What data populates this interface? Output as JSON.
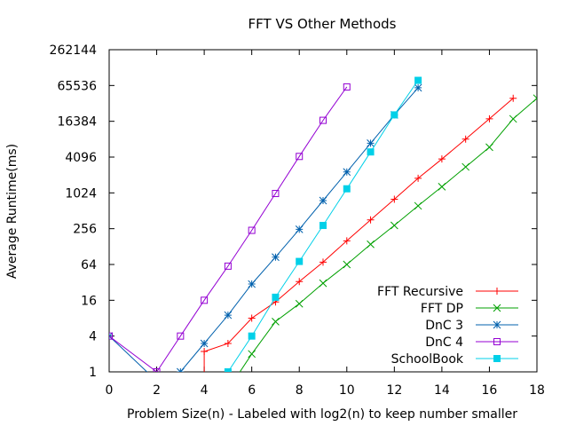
{
  "chart_data": {
    "type": "line",
    "title": "FFT VS Other Methods",
    "xlabel": "Problem Size(n) - Labeled with log2(n) to keep number smaller",
    "ylabel": "Average Runtime(ms)",
    "xlim": [
      0,
      18
    ],
    "ylim": [
      1,
      262144
    ],
    "yscale": "log2",
    "x_ticks": [
      0,
      2,
      4,
      6,
      8,
      10,
      12,
      14,
      16,
      18
    ],
    "y_ticks": [
      1,
      4,
      16,
      64,
      256,
      1024,
      4096,
      16384,
      65536,
      262144
    ],
    "grid": false,
    "legend_position": "bottom-right",
    "series": [
      {
        "name": "FFT Recursive",
        "color": "#ff0000",
        "marker": "plus",
        "points": [
          [
            4,
            0.5
          ],
          [
            4,
            2.2
          ],
          [
            5,
            3
          ],
          [
            6,
            8
          ],
          [
            7,
            15
          ],
          [
            8,
            33
          ],
          [
            9,
            70
          ],
          [
            10,
            160
          ],
          [
            11,
            360
          ],
          [
            12,
            800
          ],
          [
            13,
            1800
          ],
          [
            14,
            3800
          ],
          [
            15,
            8200
          ],
          [
            16,
            18000
          ],
          [
            17,
            40000
          ]
        ]
      },
      {
        "name": "FFT DP",
        "color": "#00a000",
        "marker": "x",
        "points": [
          [
            5,
            0.5
          ],
          [
            6,
            2
          ],
          [
            7,
            7
          ],
          [
            8,
            14
          ],
          [
            9,
            31
          ],
          [
            10,
            64
          ],
          [
            11,
            140
          ],
          [
            12,
            290
          ],
          [
            13,
            620
          ],
          [
            14,
            1300
          ],
          [
            15,
            2800
          ],
          [
            16,
            6000
          ],
          [
            17,
            18000
          ],
          [
            18,
            40000
          ]
        ]
      },
      {
        "name": "DnC 3",
        "color": "#0060ad",
        "marker": "star",
        "points": [
          [
            0,
            4
          ],
          [
            2,
            0.7
          ],
          [
            3,
            1
          ],
          [
            4,
            3
          ],
          [
            5,
            9
          ],
          [
            6,
            30
          ],
          [
            7,
            85
          ],
          [
            8,
            250
          ],
          [
            9,
            760
          ],
          [
            10,
            2300
          ],
          [
            11,
            7000
          ],
          [
            12,
            21000
          ],
          [
            13,
            60000
          ]
        ]
      },
      {
        "name": "DnC 4",
        "color": "#9400d3",
        "marker": "square",
        "points": [
          [
            0,
            4
          ],
          [
            2,
            1
          ],
          [
            3,
            4
          ],
          [
            4,
            16
          ],
          [
            5,
            60
          ],
          [
            6,
            240
          ],
          [
            7,
            1000
          ],
          [
            8,
            4200
          ],
          [
            9,
            17000
          ],
          [
            10,
            62000
          ]
        ]
      },
      {
        "name": "SchoolBook",
        "color": "#00d0e8",
        "marker": "filled-square",
        "points": [
          [
            5,
            1
          ],
          [
            6,
            4
          ],
          [
            7,
            18
          ],
          [
            8,
            72
          ],
          [
            9,
            290
          ],
          [
            10,
            1200
          ],
          [
            11,
            5000
          ],
          [
            12,
            21000
          ],
          [
            13,
            80000
          ]
        ]
      }
    ]
  }
}
